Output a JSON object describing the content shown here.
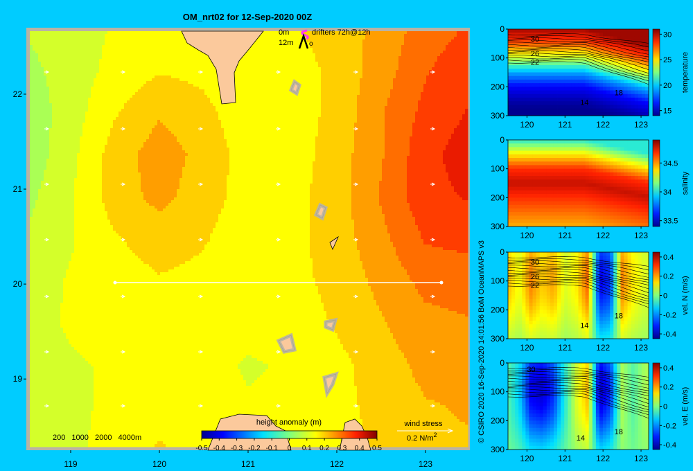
{
  "title": "OM_nrt02 for 12-Sep-2020 00Z",
  "colors": {
    "background": "#00ccff",
    "land": "#fbc99c",
    "frame": "#b9b3a5",
    "drifter": "#ff33ff"
  },
  "map": {
    "legend": {
      "drifter_depth_top": "0m",
      "drifter_label": "drifters 72h@12h",
      "drifter_depth_bottom": "12m",
      "drifter_marker_bottom": "o"
    },
    "xticks": [
      "119",
      "120",
      "121",
      "122",
      "123"
    ],
    "yticks": [
      "22",
      "21",
      "20",
      "19"
    ],
    "depth_legend": [
      "200",
      "1000",
      "2000",
      "4000m"
    ],
    "colorbar": {
      "title": "height anomaly (m)",
      "ticks": [
        "-0.5",
        "-0.4",
        "-0.3",
        "-0.2",
        "-0.1",
        "0",
        "0.1",
        "0.2",
        "0.3",
        "0.4",
        "0.5"
      ]
    },
    "wind": {
      "label": "wind stress",
      "scale_value": "0.2 N/m",
      "scale_exponent": "2"
    }
  },
  "credit": "© CSIRO 2020  16-Sep-2020 14:01:56 BoM OceanMAPS v3",
  "panels": [
    {
      "label": "temperature",
      "yticks": [
        "0",
        "100",
        "200",
        "300"
      ],
      "xticks": [
        "120",
        "121",
        "122",
        "123"
      ],
      "cticks": [
        "30",
        "25",
        "20",
        "15"
      ],
      "contour_labels": [
        "30",
        "26",
        "22",
        "18",
        "14"
      ]
    },
    {
      "label": "salinity",
      "yticks": [
        "0",
        "100",
        "200",
        "300"
      ],
      "xticks": [
        "120",
        "121",
        "122",
        "123"
      ],
      "cticks": [
        "34.5",
        "34",
        "33.5"
      ],
      "contour_labels": []
    },
    {
      "label": "vel. N (m/s)",
      "yticks": [
        "0",
        "100",
        "200",
        "300"
      ],
      "xticks": [
        "120",
        "121",
        "122",
        "123"
      ],
      "cticks": [
        "0.4",
        "0.2",
        "0",
        "-0.2",
        "-0.4"
      ],
      "contour_labels": [
        "30",
        "26",
        "22",
        "18",
        "14"
      ]
    },
    {
      "label": "vel. E (m/s)",
      "yticks": [
        "0",
        "100",
        "200",
        "300"
      ],
      "xticks": [
        "120",
        "121",
        "122",
        "123"
      ],
      "cticks": [
        "0.4",
        "0.2",
        "0",
        "-0.2",
        "-0.4"
      ],
      "contour_labels": [
        "30",
        "18",
        "14"
      ]
    }
  ],
  "chart_data": [
    {
      "type": "heatmap",
      "title": "OM_nrt02 for 12-Sep-2020 00Z",
      "variable": "height anomaly (m)",
      "xlim": [
        118.5,
        123.5
      ],
      "ylim": [
        18.25,
        22.7
      ],
      "clim": [
        -0.5,
        0.5
      ],
      "section_line": {
        "lon": [
          119.5,
          123.2
        ],
        "lat": [
          20,
          20
        ]
      },
      "field_grid": {
        "lon": [
          118.5,
          119.0,
          119.5,
          120.0,
          120.5,
          121.0,
          121.5,
          122.0,
          122.5,
          123.0,
          123.5
        ],
        "lat": [
          22.7,
          22.25,
          21.8,
          21.35,
          20.9,
          20.45,
          20.0,
          19.55,
          19.1,
          18.65,
          18.25
        ],
        "values": [
          [
            0.08,
            0.1,
            0.13,
            0.14,
            0.15,
            0.14,
            0.17,
            0.2,
            0.24,
            0.3,
            0.33
          ],
          [
            0.06,
            0.1,
            0.14,
            0.17,
            0.16,
            0.13,
            0.15,
            0.19,
            0.25,
            0.32,
            0.36
          ],
          [
            0.04,
            0.1,
            0.17,
            0.22,
            0.19,
            0.14,
            0.15,
            0.19,
            0.27,
            0.34,
            0.38
          ],
          [
            0.04,
            0.11,
            0.2,
            0.25,
            0.21,
            0.15,
            0.15,
            0.2,
            0.27,
            0.36,
            0.4
          ],
          [
            0.06,
            0.12,
            0.2,
            0.24,
            0.2,
            0.15,
            0.16,
            0.2,
            0.28,
            0.36,
            0.38
          ],
          [
            0.08,
            0.12,
            0.17,
            0.2,
            0.18,
            0.14,
            0.16,
            0.2,
            0.26,
            0.33,
            0.34
          ],
          [
            0.1,
            0.13,
            0.15,
            0.17,
            0.16,
            0.14,
            0.16,
            0.19,
            0.24,
            0.29,
            0.3
          ],
          [
            0.11,
            0.13,
            0.14,
            0.15,
            0.15,
            0.14,
            0.15,
            0.18,
            0.22,
            0.26,
            0.27
          ],
          [
            0.11,
            0.12,
            0.13,
            0.14,
            0.14,
            0.12,
            0.13,
            0.16,
            0.2,
            0.24,
            0.25
          ],
          [
            0.1,
            0.11,
            0.14,
            0.16,
            0.15,
            0.13,
            0.14,
            0.16,
            0.19,
            0.22,
            0.23
          ],
          [
            0.08,
            0.11,
            0.15,
            0.18,
            0.16,
            0.14,
            0.14,
            0.16,
            0.18,
            0.21,
            0.22
          ]
        ]
      }
    },
    {
      "type": "heatmap",
      "variable": "temperature",
      "xlim": [
        119.5,
        123.2
      ],
      "ylim": [
        300,
        0
      ],
      "clim": [
        14,
        31
      ],
      "profile_depth": [
        0,
        50,
        100,
        150,
        200,
        250,
        300
      ],
      "profile_value": [
        30.5,
        28,
        24,
        19,
        16,
        14.5,
        13.5
      ]
    },
    {
      "type": "heatmap",
      "variable": "salinity",
      "xlim": [
        119.5,
        123.2
      ],
      "ylim": [
        300,
        0
      ],
      "clim": [
        33.4,
        34.9
      ],
      "profile_depth": [
        0,
        50,
        100,
        150,
        200,
        250,
        300
      ],
      "profile_value": [
        34.0,
        34.4,
        34.7,
        34.8,
        34.7,
        34.6,
        34.5
      ]
    },
    {
      "type": "heatmap",
      "variable": "vel. N (m/s)",
      "xlim": [
        119.5,
        123.2
      ],
      "ylim": [
        300,
        0
      ],
      "clim": [
        -0.45,
        0.45
      ],
      "section_lon": [
        119.5,
        119.8,
        120.1,
        120.4,
        120.7,
        121.0,
        121.3,
        121.6,
        121.9,
        122.2,
        122.5,
        122.8,
        123.1
      ],
      "section_value": [
        0.2,
        0.12,
        0.25,
        0.18,
        0.22,
        0.1,
        0.15,
        0.28,
        -0.35,
        -0.3,
        0.25,
        0.15,
        0.1
      ]
    },
    {
      "type": "heatmap",
      "variable": "vel. E (m/s)",
      "xlim": [
        119.5,
        123.2
      ],
      "ylim": [
        300,
        0
      ],
      "clim": [
        -0.45,
        0.45
      ],
      "section_lon": [
        119.5,
        119.8,
        120.1,
        120.4,
        120.7,
        121.0,
        121.3,
        121.6,
        121.9,
        122.2,
        122.5,
        122.8,
        123.1
      ],
      "section_value": [
        -0.05,
        -0.15,
        -0.35,
        -0.38,
        -0.3,
        -0.1,
        0.1,
        0.2,
        -0.4,
        -0.3,
        0.05,
        -0.05,
        0.05
      ]
    }
  ]
}
